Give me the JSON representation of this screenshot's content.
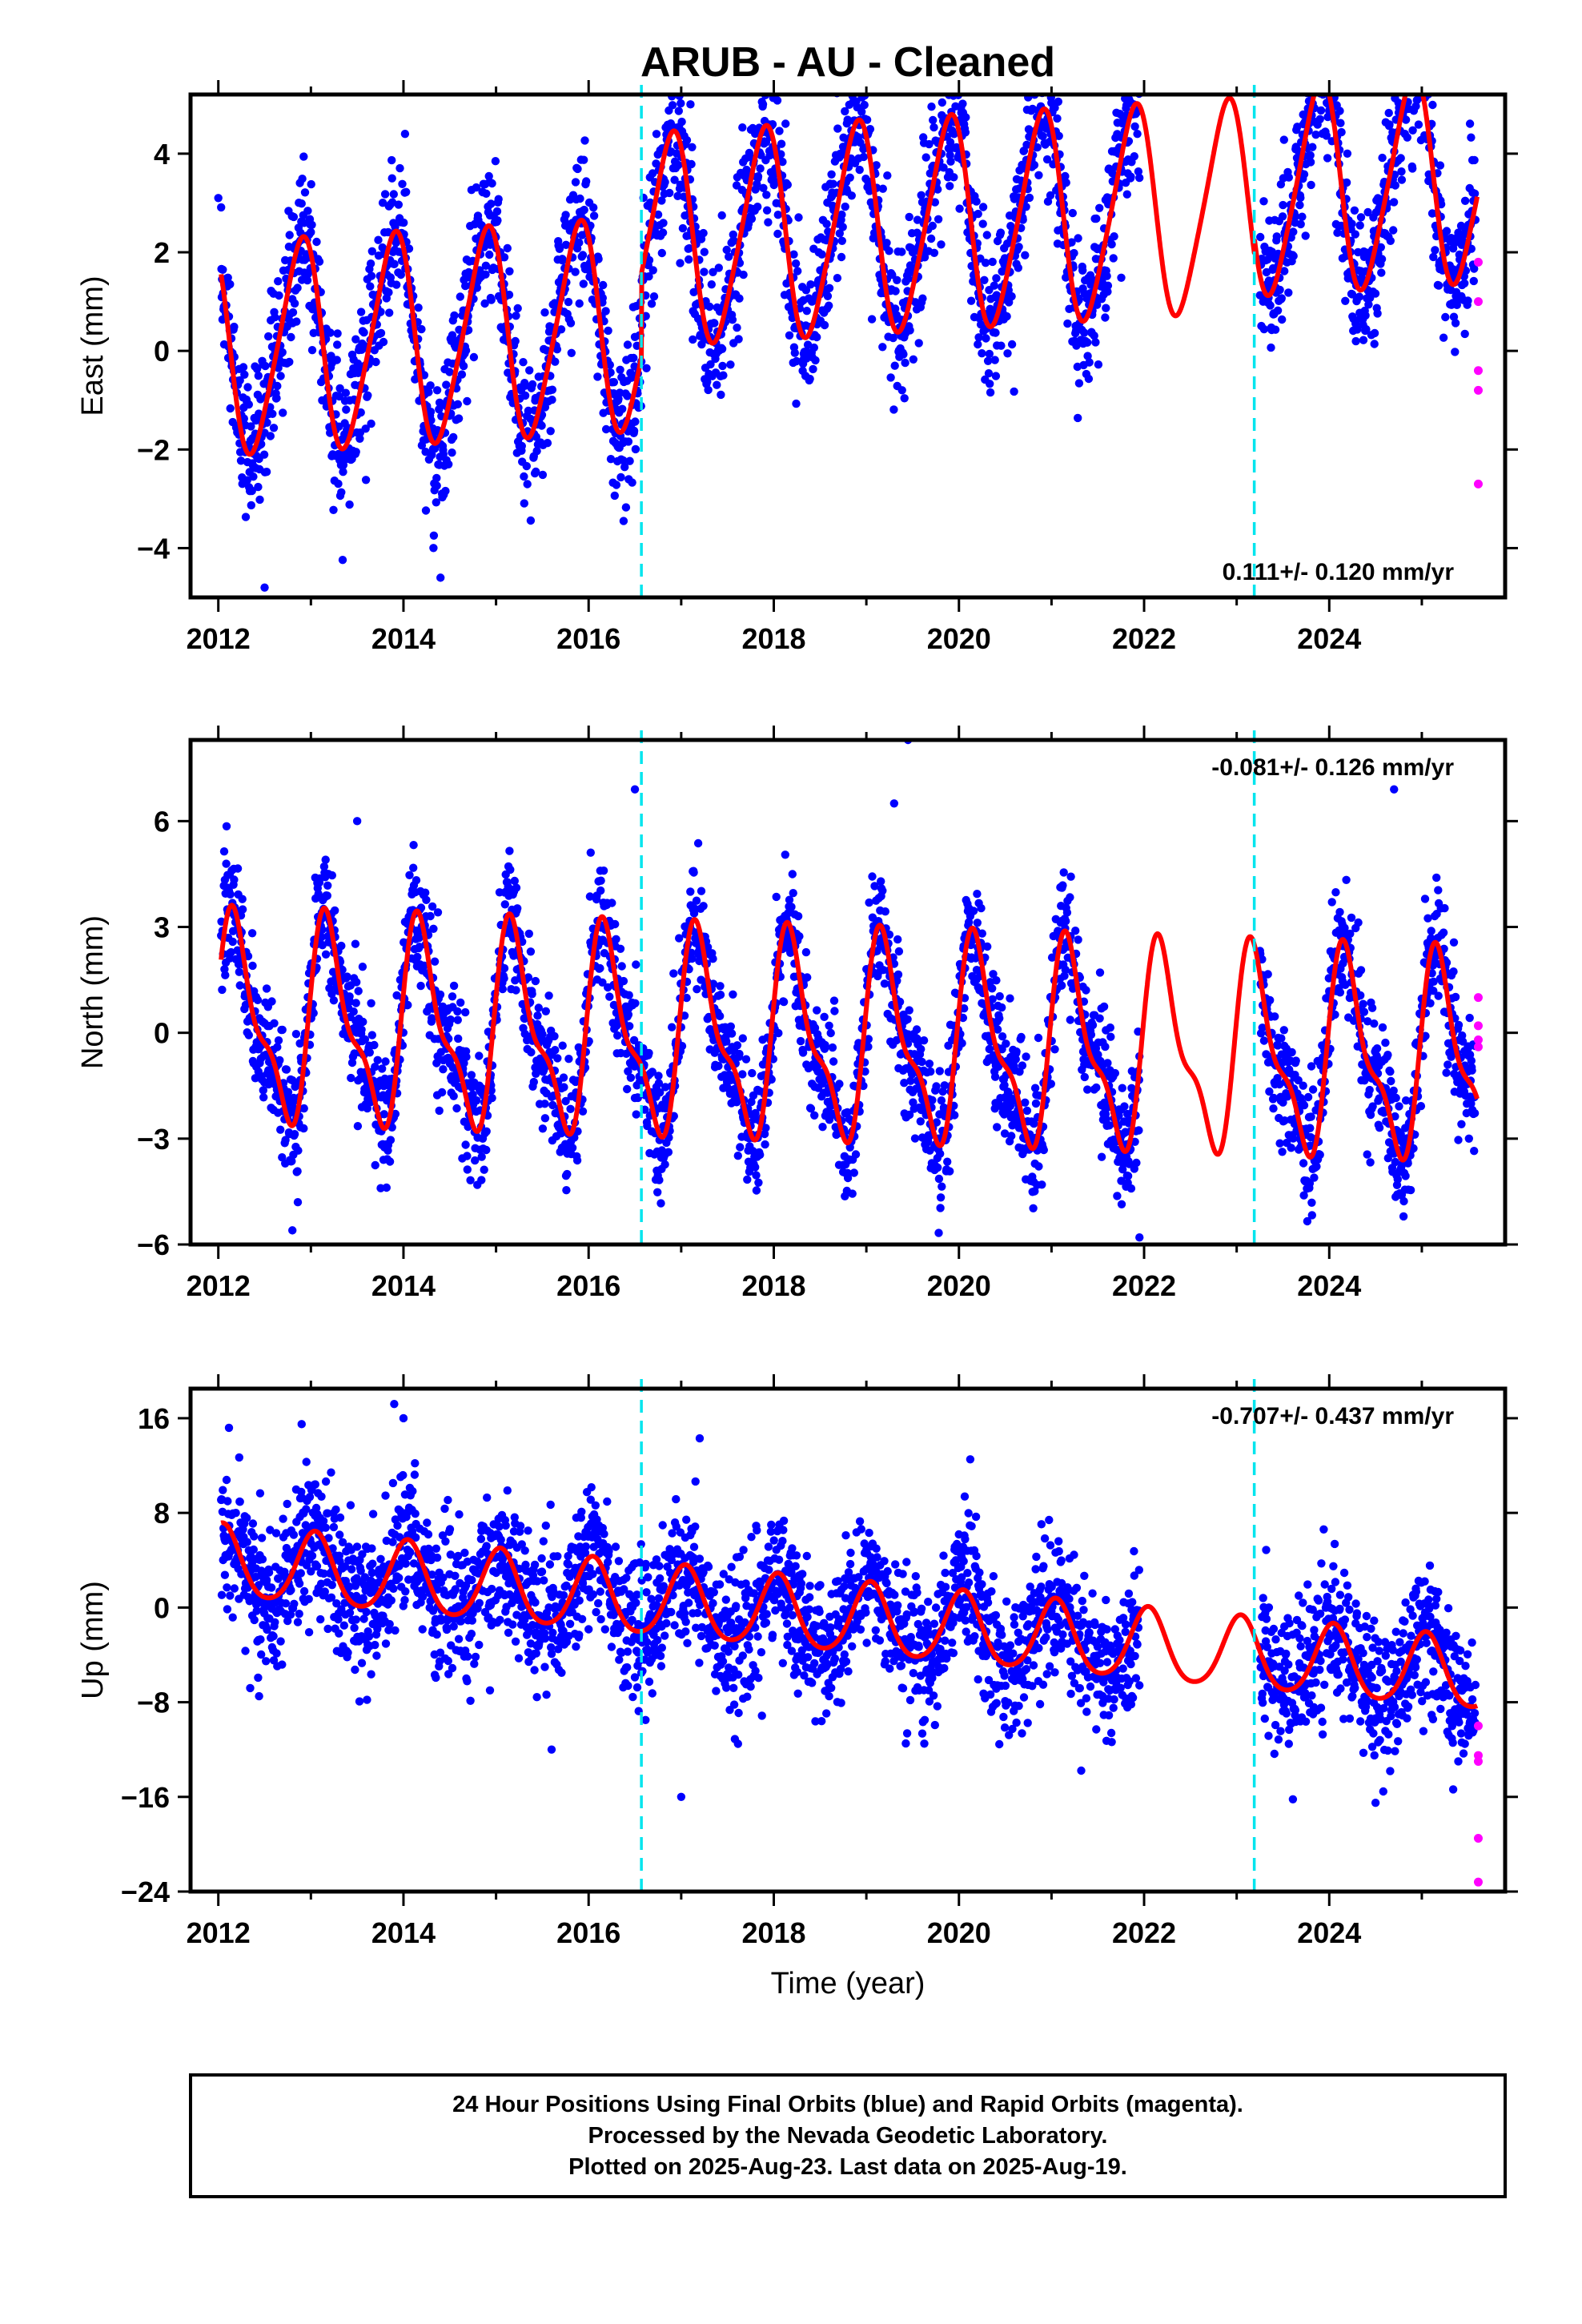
{
  "title": "ARUB  - AU - Cleaned",
  "xlabel": "Time (year)",
  "footer": {
    "line1": "24 Hour Positions Using Final Orbits (blue) and Rapid Orbits (magenta).",
    "line2": "Processed by the Nevada Geodetic Laboratory.",
    "line3": "Plotted on 2025-Aug-23. Last data on 2025-Aug-19."
  },
  "colors": {
    "final_orbits": "#0000ff",
    "rapid_orbits": "#ff00ff",
    "model_fit": "#ff0000",
    "equipment_change": "#00e5ee"
  },
  "chart_data": [
    {
      "type": "scatter",
      "component": "east",
      "ylabel": "East (mm)",
      "xlim": [
        2011.7,
        2025.9
      ],
      "ylim": [
        -5.0,
        5.2
      ],
      "xticks": [
        2012,
        2014,
        2016,
        2018,
        2020,
        2022,
        2024
      ],
      "yticks": [
        -4,
        -2,
        0,
        2,
        4
      ],
      "ytick_labels": [
        "−4",
        "−2",
        "0",
        "2",
        "4"
      ],
      "rate_text": "0.111+/- 0.120 mm/yr",
      "rate_position": "bottom-right",
      "vertical_lines": [
        2016.57,
        2023.19
      ],
      "data_gap": [
        2021.95,
        2023.25
      ],
      "model": {
        "offset": 0.0,
        "trend": 0.111,
        "annual_amp": 2.1,
        "semiannual_amp": 0.3,
        "phase": 2.3,
        "steps": [
          {
            "x": 2016.57,
            "dy": 1.7
          },
          {
            "x": 2023.19,
            "dy": 0.3
          }
        ]
      },
      "noise": 0.75,
      "rapid_points": [
        [
          2025.61,
          1.8
        ],
        [
          2025.61,
          1.0
        ],
        [
          2025.61,
          -0.4
        ],
        [
          2025.61,
          -0.8
        ],
        [
          2025.61,
          -2.7
        ]
      ],
      "outliers": [
        [
          2012.0,
          3.1
        ],
        [
          2017.1,
          5.0
        ],
        [
          2019.0,
          4.4
        ],
        [
          2021.8,
          4.6
        ],
        [
          2023.9,
          4.7
        ],
        [
          2014.4,
          -4.6
        ],
        [
          2012.5,
          -4.8
        ]
      ]
    },
    {
      "type": "scatter",
      "component": "north",
      "ylabel": "North (mm)",
      "xlim": [
        2011.7,
        2025.9
      ],
      "ylim": [
        -6.0,
        8.3
      ],
      "xticks": [
        2012,
        2014,
        2016,
        2018,
        2020,
        2022,
        2024
      ],
      "yticks": [
        -6,
        -3,
        0,
        3,
        6
      ],
      "ytick_labels": [
        "−6",
        "−3",
        "0",
        "3",
        "6"
      ],
      "rate_text": "-0.081+/- 0.126 mm/yr",
      "rate_position": "top-right",
      "vertical_lines": [
        2016.57,
        2023.19
      ],
      "data_gap": [
        2021.95,
        2023.25
      ],
      "model": {
        "offset": 0.3,
        "trend": -0.081,
        "annual_amp": 2.6,
        "semiannual_amp": 1.0,
        "phase": 0.3,
        "steps": []
      },
      "noise": 0.9,
      "rapid_points": [
        [
          2025.61,
          1.0
        ],
        [
          2025.61,
          0.2
        ],
        [
          2025.61,
          -0.2
        ],
        [
          2025.61,
          -0.4
        ]
      ],
      "outliers": [
        [
          2019.45,
          8.3
        ],
        [
          2019.3,
          6.5
        ],
        [
          2016.5,
          6.9
        ],
        [
          2013.5,
          6.0
        ],
        [
          2012.8,
          -5.6
        ],
        [
          2021.95,
          -5.8
        ],
        [
          2024.7,
          6.9
        ]
      ]
    },
    {
      "type": "scatter",
      "component": "up",
      "ylabel": "Up (mm)",
      "xlim": [
        2011.7,
        2025.9
      ],
      "ylim": [
        -24.0,
        18.5
      ],
      "xticks": [
        2012,
        2014,
        2016,
        2018,
        2020,
        2022,
        2024
      ],
      "yticks": [
        -24,
        -16,
        -8,
        0,
        8,
        16
      ],
      "ytick_labels": [
        "−24",
        "−16",
        "−8",
        "0",
        "8",
        "16"
      ],
      "rate_text": "-0.707+/- 0.437 mm/yr",
      "rate_position": "top-right",
      "vertical_lines": [
        2016.57,
        2023.19
      ],
      "data_gap": [
        2021.95,
        2023.25
      ],
      "model": {
        "offset": 3.8,
        "trend": -0.707,
        "annual_amp": 3.0,
        "semiannual_amp": 0.4,
        "phase": 1.3,
        "steps": []
      },
      "noise": 3.0,
      "rapid_points": [
        [
          2025.61,
          -10.0
        ],
        [
          2025.61,
          -12.5
        ],
        [
          2025.61,
          -13.0
        ],
        [
          2025.61,
          -19.5
        ],
        [
          2025.61,
          -23.2
        ]
      ],
      "outliers": [
        [
          2013.9,
          17.2
        ],
        [
          2014.0,
          16.0
        ],
        [
          2012.9,
          15.5
        ],
        [
          2017.2,
          14.3
        ],
        [
          2017.0,
          -16.0
        ],
        [
          2015.6,
          -12.0
        ],
        [
          2024.5,
          -16.5
        ]
      ]
    }
  ]
}
